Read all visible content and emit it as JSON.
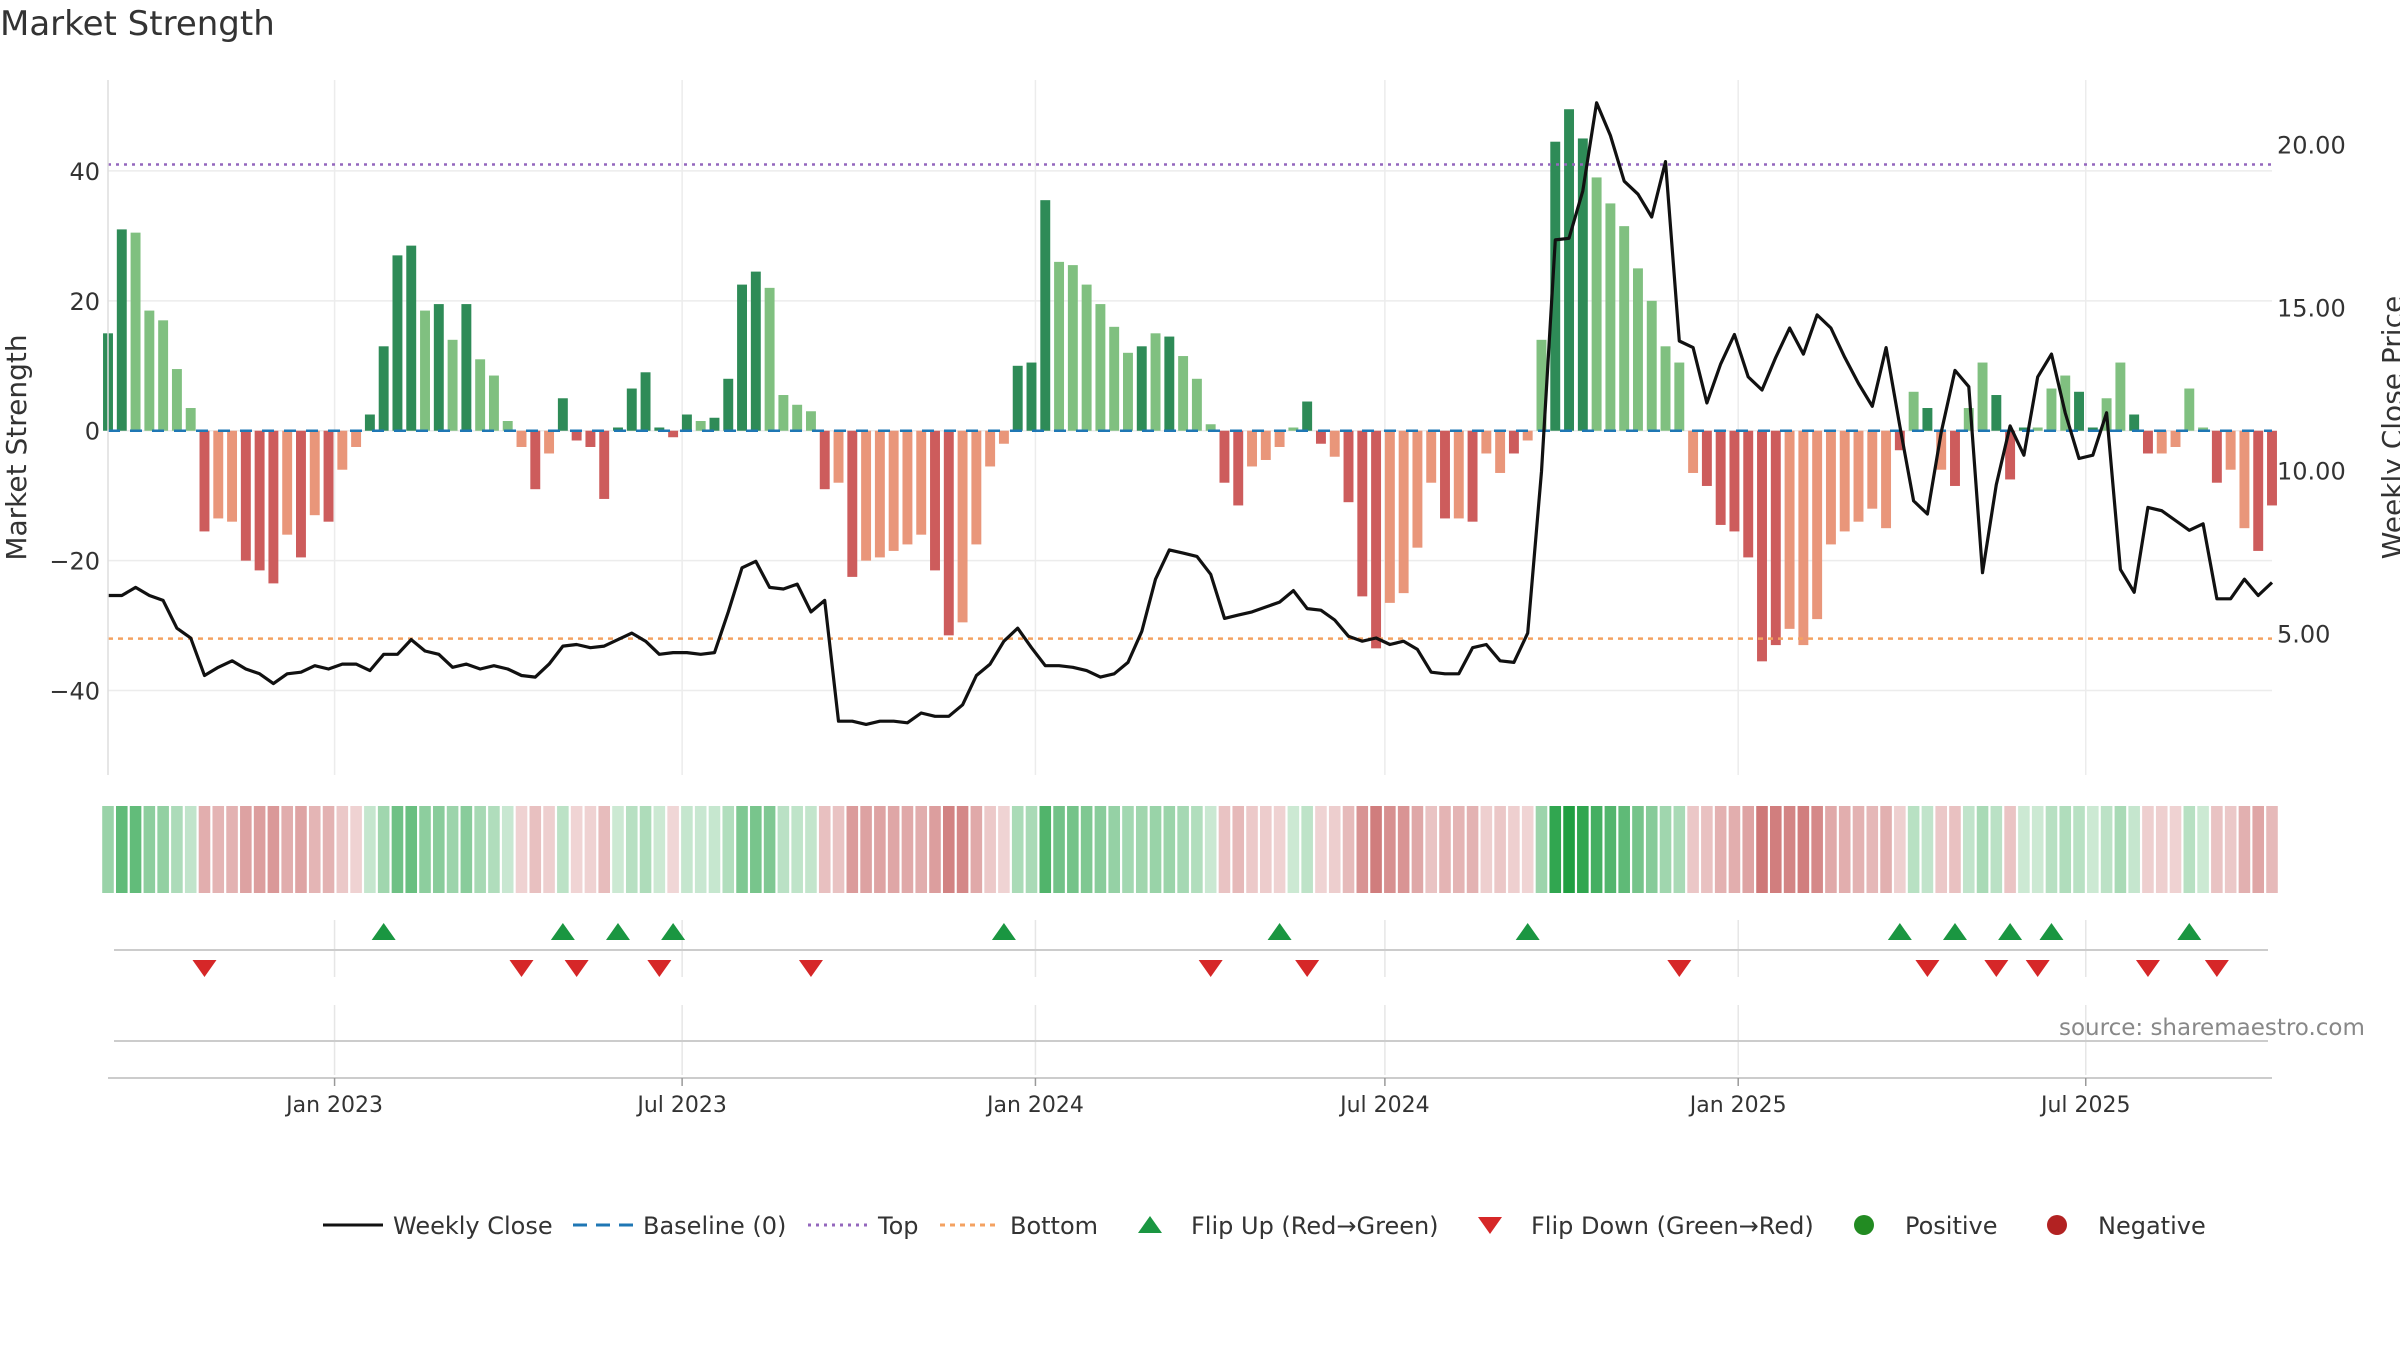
{
  "chart_data": {
    "type": "bar",
    "title": "Market Strength",
    "ylabel_left": "Market Strength",
    "ylabel_right": "Weekly Close Price",
    "source": "source: sharemaestro.com",
    "left_axis": {
      "ylim": [
        -53,
        54
      ],
      "ticks": [
        40,
        20,
        0,
        -20,
        -40
      ],
      "tick_labels": [
        "40",
        "20",
        "0",
        "−20",
        "−40"
      ]
    },
    "right_axis": {
      "ylim": [
        0.7,
        22.0
      ],
      "ticks": [
        20,
        15,
        10,
        5
      ],
      "tick_labels": [
        "20.00",
        "15.00",
        "10.00",
        "5.00"
      ]
    },
    "x_axis": {
      "start": "2022-09-05",
      "end": "2025-10-06",
      "ticks": [
        "2023-01-01",
        "2023-07-01",
        "2024-01-01",
        "2024-07-01",
        "2025-01-01",
        "2025-07-01"
      ],
      "tick_labels": [
        "Jan 2023",
        "Jul 2023",
        "Jan 2024",
        "Jul 2024",
        "Jan 2025",
        "Jul 2025"
      ]
    },
    "top_level": 41,
    "bottom_level": -32,
    "baseline": 0,
    "strength": [
      15,
      31,
      30.5,
      18.5,
      17,
      9.5,
      3.5,
      -15.5,
      -13.5,
      -14,
      -20,
      -21.5,
      -23.5,
      -16,
      -19.5,
      -13,
      -14,
      -6,
      -2.5,
      2.5,
      13,
      27,
      28.5,
      18.5,
      19.5,
      14,
      19.5,
      11,
      8.5,
      1.5,
      -2.5,
      -9,
      -3.5,
      5,
      -1.5,
      -2.5,
      -10.5,
      0.5,
      6.5,
      9,
      0.5,
      -1,
      2.5,
      1.5,
      2,
      8,
      22.5,
      24.5,
      22,
      5.5,
      4,
      3,
      -9,
      -8,
      -22.5,
      -20,
      -19.5,
      -18.5,
      -17.5,
      -16,
      -21.5,
      -31.5,
      -29.5,
      -17.5,
      -5.5,
      -2,
      10,
      10.5,
      35.5,
      26,
      25.5,
      22.5,
      19.5,
      16,
      12,
      13,
      15,
      14.5,
      11.5,
      8,
      1,
      -8,
      -11.5,
      -5.5,
      -4.5,
      -2.5,
      0.5,
      4.5,
      -2,
      -4,
      -11,
      -25.5,
      -33.5,
      -26.5,
      -25,
      -18,
      -8,
      -13.5,
      -13.5,
      -14,
      -3.5,
      -6.5,
      -3.5,
      -1.5,
      14,
      44.5,
      49.5,
      45,
      39,
      35,
      31.5,
      25,
      20,
      13,
      10.5,
      -6.5,
      -8.5,
      -14.5,
      -15.5,
      -19.5,
      -35.5,
      -33,
      -30.5,
      -33,
      -29,
      -17.5,
      -15.5,
      -14,
      -12,
      -15,
      -3,
      6,
      3.5,
      -6,
      -8.5,
      3.5,
      10.5,
      5.5,
      -7.5,
      0.5,
      0.5,
      6.5,
      8.5,
      6,
      0.5,
      5,
      10.5,
      2.5,
      -3.5,
      -3.5,
      -2.5,
      6.5,
      0.5,
      -8,
      -6,
      -15,
      -18.5,
      -11.5
    ],
    "bar_shade": [
      2,
      2,
      1,
      1,
      1,
      1,
      1,
      2,
      1,
      1,
      2,
      2,
      2,
      1,
      2,
      1,
      2,
      1,
      1,
      2,
      2,
      2,
      2,
      1,
      2,
      1,
      2,
      1,
      1,
      1,
      1,
      2,
      1,
      2,
      2,
      2,
      2,
      2,
      2,
      2,
      2,
      2,
      2,
      1,
      2,
      2,
      2,
      2,
      1,
      1,
      1,
      1,
      2,
      1,
      2,
      1,
      1,
      1,
      1,
      1,
      2,
      2,
      1,
      1,
      1,
      1,
      2,
      2,
      2,
      1,
      1,
      1,
      1,
      1,
      1,
      2,
      1,
      2,
      1,
      1,
      1,
      2,
      2,
      1,
      1,
      1,
      1,
      2,
      2,
      1,
      2,
      2,
      2,
      1,
      1,
      1,
      1,
      2,
      1,
      2,
      1,
      1,
      2,
      1,
      1,
      2,
      2,
      2,
      1,
      1,
      1,
      1,
      1,
      1,
      1,
      1,
      2,
      2,
      2,
      2,
      2,
      2,
      1,
      1,
      1,
      1,
      1,
      1,
      1,
      1,
      2,
      1,
      2,
      1,
      2,
      1,
      1,
      2,
      2,
      2,
      1,
      1,
      1,
      2,
      2,
      1,
      1,
      2,
      2,
      1,
      1,
      1,
      1,
      2,
      1,
      1,
      2,
      2,
      1
    ],
    "weekly_close": [
      6.2,
      6.2,
      6.45,
      6.2,
      6.05,
      5.2,
      4.9,
      3.75,
      4.0,
      4.2,
      3.95,
      3.8,
      3.5,
      3.8,
      3.85,
      4.05,
      3.95,
      4.1,
      4.1,
      3.9,
      4.4,
      4.4,
      4.85,
      4.5,
      4.4,
      4.0,
      4.1,
      3.95,
      4.05,
      3.95,
      3.75,
      3.7,
      4.1,
      4.65,
      4.7,
      4.6,
      4.65,
      4.85,
      5.05,
      4.8,
      4.4,
      4.45,
      4.45,
      4.4,
      4.45,
      5.7,
      7.05,
      7.25,
      6.45,
      6.4,
      6.55,
      5.7,
      6.05,
      2.35,
      2.35,
      2.25,
      2.35,
      2.35,
      2.3,
      2.6,
      2.5,
      2.5,
      2.85,
      3.75,
      4.1,
      4.8,
      5.2,
      4.6,
      4.05,
      4.05,
      4.0,
      3.9,
      3.7,
      3.8,
      4.15,
      5.1,
      6.7,
      7.6,
      7.5,
      7.4,
      6.85,
      5.5,
      5.6,
      5.7,
      5.85,
      6.0,
      6.35,
      5.8,
      5.75,
      5.45,
      4.95,
      4.8,
      4.9,
      4.7,
      4.8,
      4.55,
      3.85,
      3.8,
      3.8,
      4.6,
      4.7,
      4.2,
      4.15,
      5.05,
      10.0,
      17.1,
      17.15,
      18.6,
      21.3,
      20.3,
      18.9,
      18.5,
      17.8,
      19.5,
      14.0,
      13.8,
      12.1,
      13.3,
      14.2,
      12.9,
      12.5,
      13.5,
      14.4,
      13.6,
      14.8,
      14.4,
      13.5,
      12.7,
      12.0,
      13.8,
      11.4,
      9.1,
      8.7,
      11.2,
      13.1,
      12.6,
      6.9,
      9.6,
      11.4,
      10.5,
      12.9,
      13.6,
      11.8,
      10.4,
      10.5,
      11.8,
      7.0,
      6.3,
      8.9,
      8.8,
      8.5,
      8.2,
      8.4,
      6.1,
      6.1,
      6.7,
      6.2,
      6.6
    ],
    "flips_up": [
      20,
      33,
      37,
      41,
      65,
      85,
      103,
      130,
      134,
      138,
      141,
      151
    ],
    "flips_down": [
      7,
      30,
      34,
      40,
      51,
      80,
      87,
      114,
      132,
      137,
      140,
      148,
      153
    ],
    "legend": [
      "Weekly Close",
      "Baseline (0)",
      "Top",
      "Bottom",
      "Flip Up (Red→Green)",
      "Flip Down (Green→Red)",
      "Positive",
      "Negative"
    ],
    "colors": {
      "pos_dark": "#2e8b57",
      "pos_light": "#80c080",
      "neg_dark": "#cd5c5c",
      "neg_light": "#e9967a",
      "top_line": "#9467bd",
      "bottom_line": "#f4a261",
      "baseline": "#1f77b4",
      "close_line": "#111111",
      "flip_up": "#1a9641",
      "flip_down": "#d62728",
      "positive_dot": "#228b22",
      "negative_dot": "#b22222"
    }
  }
}
